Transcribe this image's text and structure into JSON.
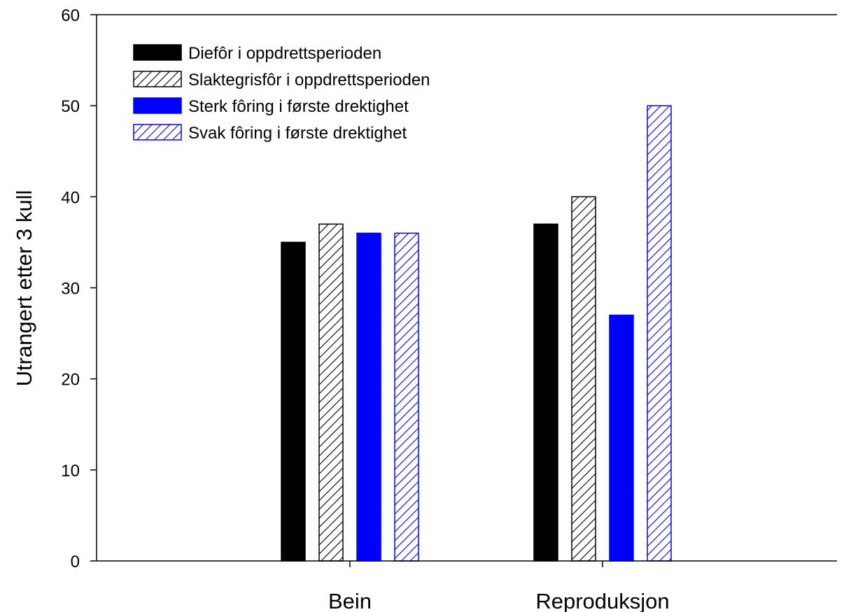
{
  "chart_data": {
    "type": "bar",
    "title": "",
    "xlabel": "",
    "ylabel": "Utrangert etter 3 kull",
    "ylim": [
      0,
      60
    ],
    "yticks": [
      0,
      10,
      20,
      30,
      40,
      50,
      60
    ],
    "grid": false,
    "legend_position": "top-left",
    "categories": [
      "Bein",
      "Reproduksjon"
    ],
    "series": [
      {
        "name": "Diefôr i oppdrettsperioden",
        "values": [
          35,
          37
        ],
        "color": "#000000",
        "pattern": "solid"
      },
      {
        "name": "Slaktegrisfôr i oppdrettsperioden",
        "values": [
          37,
          40
        ],
        "color": "#000000",
        "pattern": "hatch"
      },
      {
        "name": "Sterk fôring i første drektighet",
        "values": [
          36,
          27
        ],
        "color": "#0000ff",
        "pattern": "solid"
      },
      {
        "name": "Svak fôring i første drektighet",
        "values": [
          36,
          50
        ],
        "color": "#0000ff",
        "pattern": "hatch"
      }
    ]
  }
}
